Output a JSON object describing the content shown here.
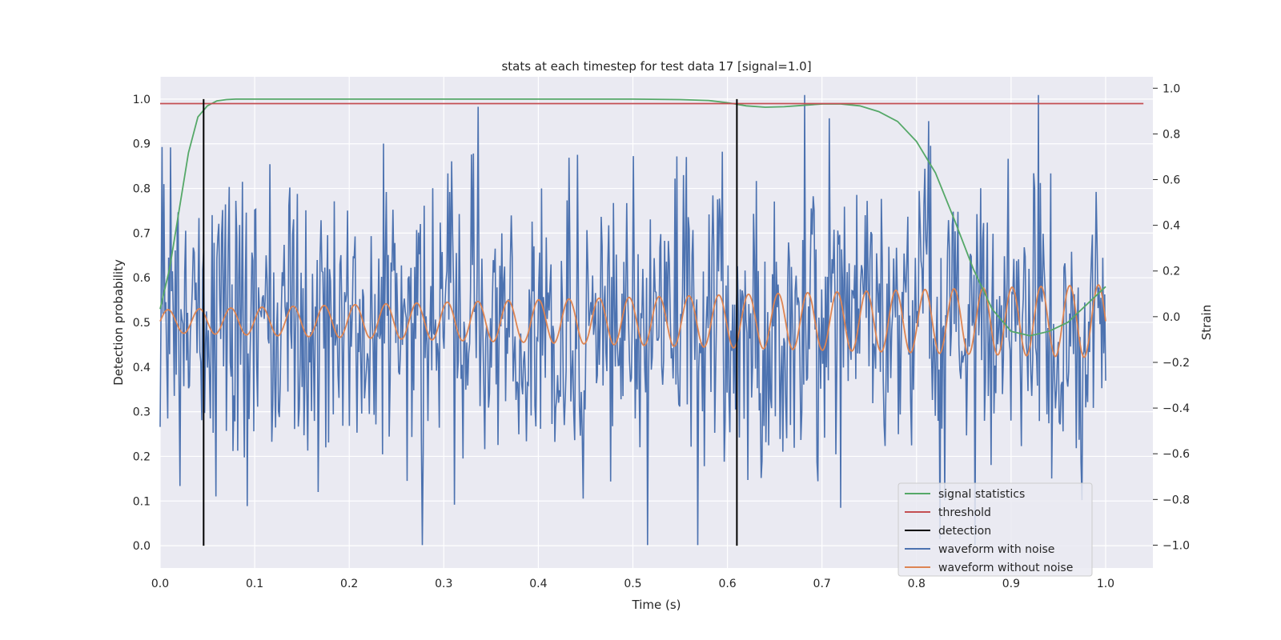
{
  "chart_data": {
    "type": "line",
    "title": "stats at each timestep for test data 17 [signal=1.0]",
    "xlabel": "Time (s)",
    "ylabel": "Detection probability",
    "y2label": "Strain",
    "xlim": [
      0.0,
      1.05
    ],
    "ylim": [
      -0.05,
      1.05
    ],
    "y2lim": [
      -1.1,
      1.05
    ],
    "xticks": [
      "0.0",
      "0.1",
      "0.2",
      "0.3",
      "0.4",
      "0.5",
      "0.6",
      "0.7",
      "0.8",
      "0.9",
      "1.0"
    ],
    "yticks": [
      "0.0",
      "0.1",
      "0.2",
      "0.3",
      "0.4",
      "0.5",
      "0.6",
      "0.7",
      "0.8",
      "0.9",
      "1.0"
    ],
    "y2ticks": [
      "−1.0",
      "−0.8",
      "−0.6",
      "−0.4",
      "−0.2",
      "0.0",
      "0.2",
      "0.4",
      "0.6",
      "0.8",
      "1.0"
    ],
    "grid": true,
    "legend_position": "lower-right",
    "legend": [
      {
        "label": "signal statistics",
        "color": "#55a868"
      },
      {
        "label": "threshold",
        "color": "#c44e52"
      },
      {
        "label": "detection",
        "color": "#000000"
      },
      {
        "label": "waveform with noise",
        "color": "#4c72b0"
      },
      {
        "label": "waveform without noise",
        "color": "#dd8452"
      }
    ],
    "signal_statistics": {
      "axis": "left",
      "x": [
        0.0,
        0.01,
        0.02,
        0.03,
        0.04,
        0.05,
        0.06,
        0.07,
        0.08,
        0.1,
        0.2,
        0.3,
        0.4,
        0.5,
        0.55,
        0.58,
        0.6,
        0.62,
        0.64,
        0.66,
        0.68,
        0.7,
        0.72,
        0.74,
        0.76,
        0.78,
        0.8,
        0.82,
        0.84,
        0.86,
        0.88,
        0.9,
        0.92,
        0.94,
        0.96,
        0.98,
        1.0
      ],
      "y": [
        0.53,
        0.62,
        0.75,
        0.88,
        0.96,
        0.985,
        0.996,
        0.999,
        1.0,
        1.0,
        1.0,
        1.0,
        1.0,
        1.0,
        0.999,
        0.997,
        0.992,
        0.985,
        0.982,
        0.983,
        0.986,
        0.989,
        0.989,
        0.985,
        0.972,
        0.95,
        0.905,
        0.835,
        0.73,
        0.62,
        0.53,
        0.48,
        0.47,
        0.48,
        0.5,
        0.54,
        0.58
      ]
    },
    "threshold": {
      "axis": "left",
      "y": 0.99,
      "x": [
        0.0,
        1.04
      ]
    },
    "detections": {
      "axis": "left",
      "x": [
        0.046,
        0.61
      ],
      "y": [
        0.0,
        1.0
      ]
    },
    "waveform_without_noise": {
      "axis": "right",
      "x_range": [
        0.0,
        1.0
      ],
      "cycles": 30,
      "amplitude_start": 0.05,
      "amplitude_end": 0.16,
      "offset": -0.02
    },
    "waveform_with_noise": {
      "axis": "right",
      "x_range": [
        0.0,
        1.0
      ],
      "samples": 1000,
      "noise_std": 0.3,
      "min": -1.0,
      "max": 0.97
    }
  }
}
